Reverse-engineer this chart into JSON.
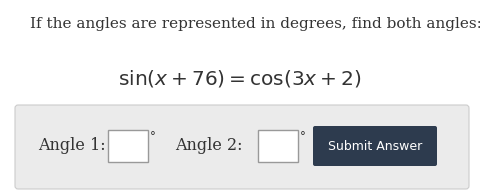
{
  "title_text": "If the angles are represented in degrees, find both angles:",
  "equation_plain": "$\\sin(x + 76) = \\cos(3x + 2)$",
  "label1": "Angle 1:",
  "label2": "Angle 2:",
  "button_text": "Submit Answer",
  "bg_color": "#ffffff",
  "panel_color": "#ebebeb",
  "panel_border": "#cccccc",
  "button_color": "#2d3b4e",
  "button_text_color": "#ffffff",
  "title_color": "#333333",
  "label_color": "#333333",
  "box_color": "#ffffff",
  "box_border": "#999999",
  "title_fontsize": 11.0,
  "eq_fontsize": 14.5,
  "label_fontsize": 11.5,
  "degree_fontsize": 8.5,
  "btn_fontsize": 9.0
}
